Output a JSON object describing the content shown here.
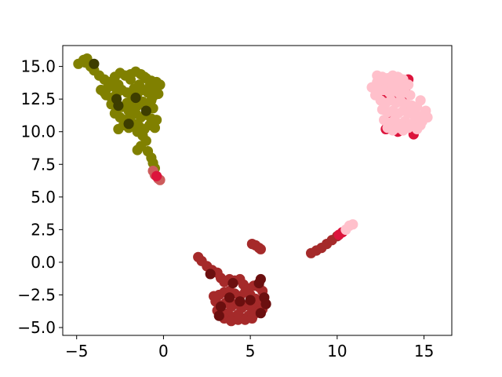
{
  "chart_data": {
    "type": "scatter",
    "title": "",
    "xlabel": "",
    "ylabel": "",
    "xlim": [
      -5.8,
      16.6
    ],
    "ylim": [
      -5.6,
      16.6
    ],
    "xticks": [
      -5,
      0,
      5,
      10,
      15
    ],
    "yticks": [
      -5.0,
      -2.5,
      0.0,
      2.5,
      5.0,
      7.5,
      10.0,
      12.5,
      15.0
    ],
    "xtick_labels": [
      "−5",
      "0",
      "5",
      "10",
      "15"
    ],
    "ytick_labels": [
      "−5.0",
      "−2.5",
      "0.0",
      "2.5",
      "5.0",
      "7.5",
      "10.0",
      "12.5",
      "15.0"
    ],
    "grid": false,
    "legend": "none",
    "marker_radius_data": 0.3,
    "colors": {
      "olive": "#808000",
      "darkolive": "#3d3d00",
      "pink": "#ffc0cb",
      "crimson": "#dc143c",
      "brown": "#a52a2a",
      "maroon": "#6b0f0f",
      "indianred": "#cd5c5c"
    },
    "series": [
      {
        "color_key": "olive",
        "points": [
          [
            -4.9,
            15.2
          ],
          [
            -4.6,
            15.5
          ],
          [
            -4.4,
            15.6
          ],
          [
            -4.5,
            15.3
          ],
          [
            -4.2,
            15.0
          ],
          [
            -4.0,
            14.7
          ],
          [
            -3.7,
            14.3
          ],
          [
            -3.4,
            14.0
          ],
          [
            -3.1,
            13.8
          ],
          [
            -2.8,
            14.2
          ],
          [
            -2.5,
            14.5
          ],
          [
            -2.2,
            14.3
          ],
          [
            -1.9,
            14.4
          ],
          [
            -1.6,
            14.6
          ],
          [
            -1.3,
            14.4
          ],
          [
            -1.0,
            14.1
          ],
          [
            -0.7,
            13.9
          ],
          [
            -0.4,
            13.8
          ],
          [
            -0.2,
            13.6
          ],
          [
            -3.6,
            13.2
          ],
          [
            -3.3,
            12.8
          ],
          [
            -3.0,
            12.6
          ],
          [
            -2.7,
            12.9
          ],
          [
            -2.4,
            13.2
          ],
          [
            -2.1,
            13.0
          ],
          [
            -1.8,
            12.7
          ],
          [
            -1.5,
            12.9
          ],
          [
            -1.2,
            13.2
          ],
          [
            -0.9,
            13.0
          ],
          [
            -0.6,
            12.7
          ],
          [
            -0.3,
            12.9
          ],
          [
            -3.0,
            12.1
          ],
          [
            -2.7,
            11.7
          ],
          [
            -2.4,
            11.9
          ],
          [
            -2.1,
            12.2
          ],
          [
            -1.8,
            11.9
          ],
          [
            -1.5,
            12.0
          ],
          [
            -1.2,
            12.3
          ],
          [
            -0.9,
            12.0
          ],
          [
            -0.6,
            11.8
          ],
          [
            -2.8,
            11.4
          ],
          [
            -2.5,
            11.1
          ],
          [
            -2.2,
            10.9
          ],
          [
            -1.9,
            11.2
          ],
          [
            -1.6,
            11.4
          ],
          [
            -1.3,
            11.1
          ],
          [
            -1.0,
            11.3
          ],
          [
            -0.7,
            11.0
          ],
          [
            -0.4,
            10.9
          ],
          [
            -2.3,
            10.5
          ],
          [
            -2.0,
            10.3
          ],
          [
            -1.7,
            10.6
          ],
          [
            -1.4,
            10.4
          ],
          [
            -1.1,
            10.2
          ],
          [
            -0.8,
            10.5
          ],
          [
            -0.5,
            10.3
          ],
          [
            -1.2,
            9.7
          ],
          [
            -1.0,
            9.3
          ],
          [
            -1.3,
            8.9
          ],
          [
            -1.5,
            8.6
          ],
          [
            -0.9,
            8.5
          ],
          [
            -0.7,
            8.0
          ],
          [
            -0.6,
            7.6
          ],
          [
            -0.5,
            7.2
          ],
          [
            -1.9,
            14.0
          ],
          [
            -1.1,
            14.2
          ],
          [
            -2.6,
            13.6
          ],
          [
            -1.4,
            13.6
          ],
          [
            -0.4,
            13.3
          ],
          [
            -3.2,
            13.4
          ],
          [
            -2.0,
            11.6
          ],
          [
            -0.7,
            12.4
          ],
          [
            -2.6,
            10.2
          ],
          [
            -1.5,
            10.0
          ],
          [
            -3.4,
            13.0
          ],
          [
            -2.9,
            13.5
          ],
          [
            -0.8,
            13.5
          ],
          [
            -1.7,
            13.3
          ]
        ]
      },
      {
        "color_key": "darkolive",
        "points": [
          [
            -4.0,
            15.2
          ],
          [
            -2.6,
            12.0
          ],
          [
            -2.7,
            12.5
          ],
          [
            -2.0,
            10.6
          ],
          [
            -1.0,
            11.6
          ],
          [
            -1.6,
            12.6
          ]
        ]
      },
      {
        "color_key": "brown",
        "points": [
          [
            2.0,
            0.4
          ],
          [
            2.2,
            0.1
          ],
          [
            2.5,
            -0.3
          ],
          [
            2.8,
            -0.6
          ],
          [
            3.1,
            -0.8
          ],
          [
            3.3,
            -1.2
          ],
          [
            3.5,
            -1.5
          ],
          [
            3.8,
            -1.3
          ],
          [
            4.1,
            -1.4
          ],
          [
            4.4,
            -1.3
          ],
          [
            4.6,
            -1.7
          ],
          [
            4.9,
            -2.0
          ],
          [
            5.2,
            -1.8
          ],
          [
            5.5,
            -1.9
          ],
          [
            5.7,
            -2.2
          ],
          [
            3.2,
            -2.5
          ],
          [
            3.5,
            -2.3
          ],
          [
            3.8,
            -2.2
          ],
          [
            4.1,
            -2.4
          ],
          [
            4.4,
            -2.6
          ],
          [
            4.7,
            -2.3
          ],
          [
            5.0,
            -2.5
          ],
          [
            5.3,
            -2.8
          ],
          [
            5.6,
            -3.0
          ],
          [
            3.0,
            -3.0
          ],
          [
            3.3,
            -3.3
          ],
          [
            3.6,
            -3.1
          ],
          [
            3.9,
            -3.4
          ],
          [
            4.2,
            -3.2
          ],
          [
            4.5,
            -3.5
          ],
          [
            4.8,
            -3.3
          ],
          [
            5.1,
            -3.6
          ],
          [
            5.4,
            -3.4
          ],
          [
            5.7,
            -3.6
          ],
          [
            3.1,
            -3.7
          ],
          [
            3.4,
            -4.0
          ],
          [
            3.7,
            -3.9
          ],
          [
            4.0,
            -4.2
          ],
          [
            4.3,
            -4.0
          ],
          [
            4.6,
            -4.3
          ],
          [
            4.9,
            -4.1
          ],
          [
            5.2,
            -4.0
          ],
          [
            5.5,
            -3.8
          ],
          [
            3.5,
            -4.3
          ],
          [
            3.9,
            -4.5
          ],
          [
            4.3,
            -4.4
          ],
          [
            4.7,
            -4.4
          ],
          [
            5.1,
            -4.3
          ],
          [
            2.9,
            -2.6
          ],
          [
            5.1,
            1.4
          ],
          [
            5.3,
            1.3
          ],
          [
            5.5,
            1.1
          ],
          [
            5.6,
            1.0
          ],
          [
            8.5,
            0.7
          ],
          [
            8.8,
            0.9
          ],
          [
            9.1,
            1.1
          ],
          [
            9.4,
            1.4
          ],
          [
            9.7,
            1.7
          ],
          [
            10.0,
            2.0
          ]
        ]
      },
      {
        "color_key": "maroon",
        "points": [
          [
            5.6,
            -1.3
          ],
          [
            5.5,
            -1.6
          ],
          [
            5.8,
            -2.7
          ],
          [
            5.9,
            -3.2
          ],
          [
            4.4,
            -3.0
          ],
          [
            3.8,
            -2.7
          ],
          [
            3.3,
            -3.4
          ],
          [
            5.6,
            -3.9
          ],
          [
            4.0,
            -1.6
          ],
          [
            3.2,
            -4.1
          ],
          [
            5.0,
            -2.9
          ],
          [
            2.7,
            -0.9
          ]
        ]
      },
      {
        "color_key": "indianred",
        "points": [
          [
            -0.5,
            6.7
          ],
          [
            -0.3,
            6.4
          ],
          [
            -0.2,
            6.3
          ],
          [
            -0.6,
            7.0
          ]
        ]
      },
      {
        "color_key": "crimson",
        "points": [
          [
            10.1,
            2.1
          ],
          [
            10.3,
            2.3
          ],
          [
            -0.4,
            6.6
          ],
          [
            12.5,
            13.3
          ],
          [
            13.7,
            14.0
          ],
          [
            14.1,
            14.0
          ],
          [
            12.9,
            12.6
          ],
          [
            13.4,
            12.5
          ],
          [
            14.0,
            12.8
          ],
          [
            12.7,
            11.7
          ],
          [
            14.2,
            11.5
          ],
          [
            13.1,
            10.8
          ],
          [
            13.8,
            10.4
          ],
          [
            14.4,
            10.5
          ],
          [
            12.8,
            10.2
          ],
          [
            13.5,
            10.0
          ],
          [
            14.4,
            9.8
          ],
          [
            14.4,
            10.2
          ],
          [
            12.6,
            12.9
          ],
          [
            13.9,
            13.3
          ]
        ]
      },
      {
        "color_key": "pink",
        "points": [
          [
            10.5,
            2.5
          ],
          [
            10.7,
            2.8
          ],
          [
            10.9,
            2.9
          ],
          [
            12.3,
            14.3
          ],
          [
            12.6,
            14.2
          ],
          [
            12.9,
            14.1
          ],
          [
            13.2,
            14.3
          ],
          [
            13.5,
            14.2
          ],
          [
            13.8,
            14.0
          ],
          [
            12.3,
            13.8
          ],
          [
            12.6,
            13.7
          ],
          [
            12.9,
            13.8
          ],
          [
            13.2,
            13.6
          ],
          [
            13.5,
            13.7
          ],
          [
            13.8,
            13.5
          ],
          [
            14.1,
            13.6
          ],
          [
            12.4,
            13.1
          ],
          [
            12.7,
            13.2
          ],
          [
            13.0,
            13.0
          ],
          [
            13.3,
            13.1
          ],
          [
            13.6,
            12.9
          ],
          [
            13.9,
            13.0
          ],
          [
            14.2,
            12.8
          ],
          [
            12.5,
            12.4
          ],
          [
            12.8,
            12.2
          ],
          [
            13.1,
            12.4
          ],
          [
            13.4,
            12.2
          ],
          [
            13.7,
            12.3
          ],
          [
            14.0,
            12.1
          ],
          [
            14.3,
            12.0
          ],
          [
            14.6,
            11.9
          ],
          [
            12.6,
            11.7
          ],
          [
            12.9,
            11.5
          ],
          [
            13.2,
            11.6
          ],
          [
            13.5,
            11.4
          ],
          [
            13.8,
            11.6
          ],
          [
            14.1,
            11.4
          ],
          [
            14.4,
            11.3
          ],
          [
            14.7,
            11.2
          ],
          [
            15.0,
            11.3
          ],
          [
            15.2,
            11.1
          ],
          [
            12.7,
            10.9
          ],
          [
            13.0,
            10.7
          ],
          [
            13.3,
            10.9
          ],
          [
            13.6,
            10.6
          ],
          [
            13.9,
            10.8
          ],
          [
            14.2,
            10.6
          ],
          [
            14.5,
            10.7
          ],
          [
            14.8,
            10.5
          ],
          [
            12.9,
            10.3
          ],
          [
            13.2,
            10.1
          ],
          [
            13.5,
            10.3
          ],
          [
            13.8,
            10.1
          ],
          [
            14.1,
            10.3
          ],
          [
            14.6,
            10.2
          ],
          [
            14.9,
            10.8
          ],
          [
            15.1,
            11.6
          ],
          [
            14.8,
            12.4
          ],
          [
            12.2,
            12.8
          ],
          [
            12.0,
            13.4
          ]
        ]
      }
    ]
  }
}
